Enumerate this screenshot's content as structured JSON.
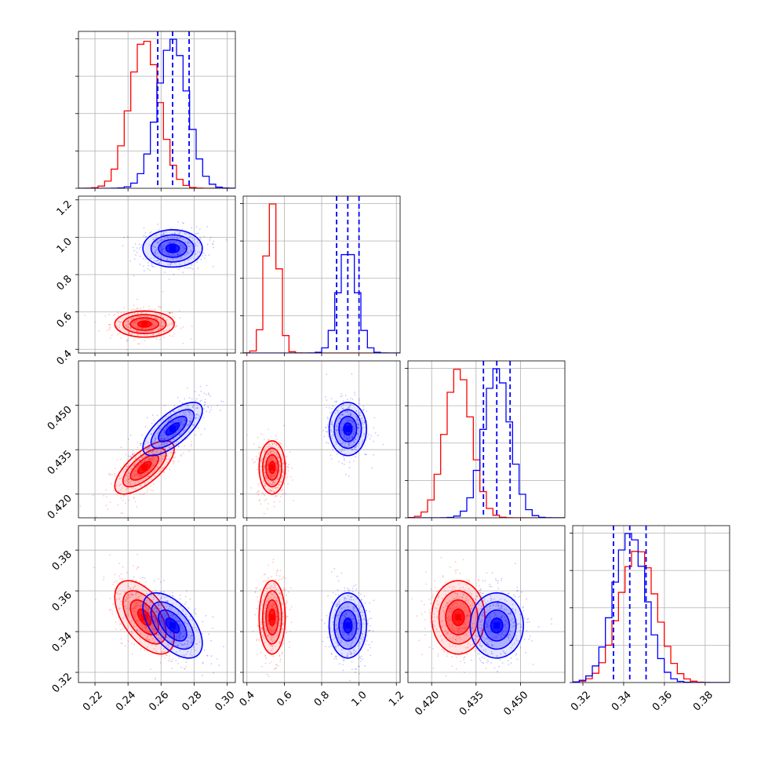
{
  "chart_data": {
    "type": "corner",
    "title": "",
    "parameters": [
      {
        "name": "",
        "range": [
          0.21,
          0.305
        ],
        "ticks": [
          0.22,
          0.24,
          0.26,
          0.28,
          0.3
        ],
        "tick_labels": [
          "0.22",
          "0.24",
          "0.26",
          "0.28",
          "0.30"
        ]
      },
      {
        "name": "",
        "range": [
          0.38,
          1.22
        ],
        "ticks": [
          0.4,
          0.6,
          0.8,
          1.0,
          1.2
        ],
        "tick_labels": [
          "0.4",
          "0.6",
          "0.8",
          "1.0",
          "1.2"
        ]
      },
      {
        "name": "",
        "range": [
          0.412,
          0.465
        ],
        "ticks": [
          0.42,
          0.435,
          0.45
        ],
        "tick_labels": [
          "0.420",
          "0.435",
          "0.450"
        ]
      },
      {
        "name": "",
        "range": [
          0.315,
          0.392
        ],
        "ticks": [
          0.32,
          0.34,
          0.36,
          0.38
        ],
        "tick_labels": [
          "0.32",
          "0.34",
          "0.36",
          "0.38"
        ]
      }
    ],
    "series": [
      {
        "name": "",
        "color": "#ff0000",
        "means": [
          0.25,
          0.535,
          0.429,
          0.347
        ],
        "sds": [
          0.009,
          0.035,
          0.0045,
          0.009
        ]
      },
      {
        "name": "",
        "color": "#0000ff",
        "means": [
          0.267,
          0.94,
          0.442,
          0.343
        ],
        "sds": [
          0.009,
          0.05,
          0.0045,
          0.008
        ]
      }
    ],
    "correlations": [
      {
        "pair": [
          0,
          2
        ],
        "rho": [
          0.7,
          0.7
        ]
      },
      {
        "pair": [
          0,
          3
        ],
        "rho": [
          -0.55,
          -0.55
        ]
      }
    ],
    "quantile_lines": {
      "color": "#0000ff",
      "style": "dashed",
      "values": [
        [
          0.258,
          0.267,
          0.277
        ],
        [
          0.88,
          0.94,
          1.0
        ],
        [
          0.4375,
          0.442,
          0.4465
        ],
        [
          0.335,
          0.343,
          0.351
        ]
      ]
    },
    "grid": true
  }
}
